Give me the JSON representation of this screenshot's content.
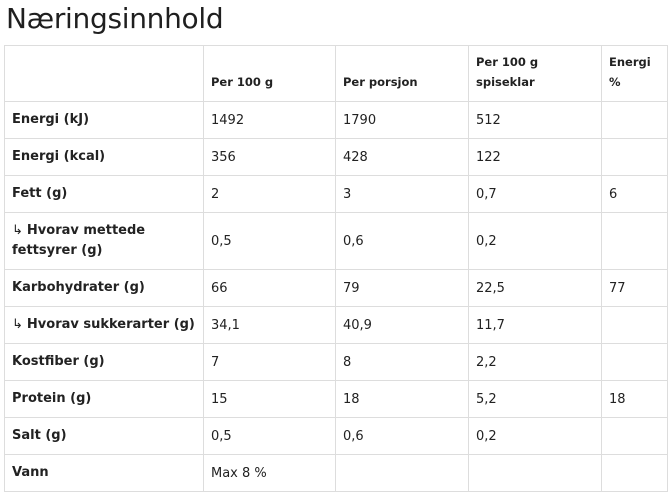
{
  "page": {
    "title": "Næringsinnhold"
  },
  "table": {
    "headers": [
      "",
      "Per 100 g",
      "Per porsjon",
      "Per 100 g spiseklar",
      "Energi %"
    ],
    "rows": [
      {
        "label": "Energi (kJ)",
        "sub": false,
        "values": [
          "1492",
          "1790",
          "512",
          ""
        ]
      },
      {
        "label": "Energi (kcal)",
        "sub": false,
        "values": [
          "356",
          "428",
          "122",
          ""
        ]
      },
      {
        "label": "Fett (g)",
        "sub": false,
        "values": [
          "2",
          "3",
          "0,7",
          "6"
        ]
      },
      {
        "label": "Hvorav mettede fettsyrer (g)",
        "sub": true,
        "values": [
          "0,5",
          "0,6",
          "0,2",
          ""
        ]
      },
      {
        "label": "Karbohydrater (g)",
        "sub": false,
        "values": [
          "66",
          "79",
          "22,5",
          "77"
        ]
      },
      {
        "label": "Hvorav sukkerarter (g)",
        "sub": true,
        "values": [
          "34,1",
          "40,9",
          "11,7",
          ""
        ]
      },
      {
        "label": "Kostfiber (g)",
        "sub": false,
        "values": [
          "7",
          "8",
          "2,2",
          ""
        ]
      },
      {
        "label": "Protein (g)",
        "sub": false,
        "values": [
          "15",
          "18",
          "5,2",
          "18"
        ]
      },
      {
        "label": "Salt (g)",
        "sub": false,
        "values": [
          "0,5",
          "0,6",
          "0,2",
          ""
        ]
      },
      {
        "label": "Vann",
        "sub": false,
        "values": [
          "Max 8 %",
          "",
          "",
          ""
        ]
      }
    ]
  }
}
